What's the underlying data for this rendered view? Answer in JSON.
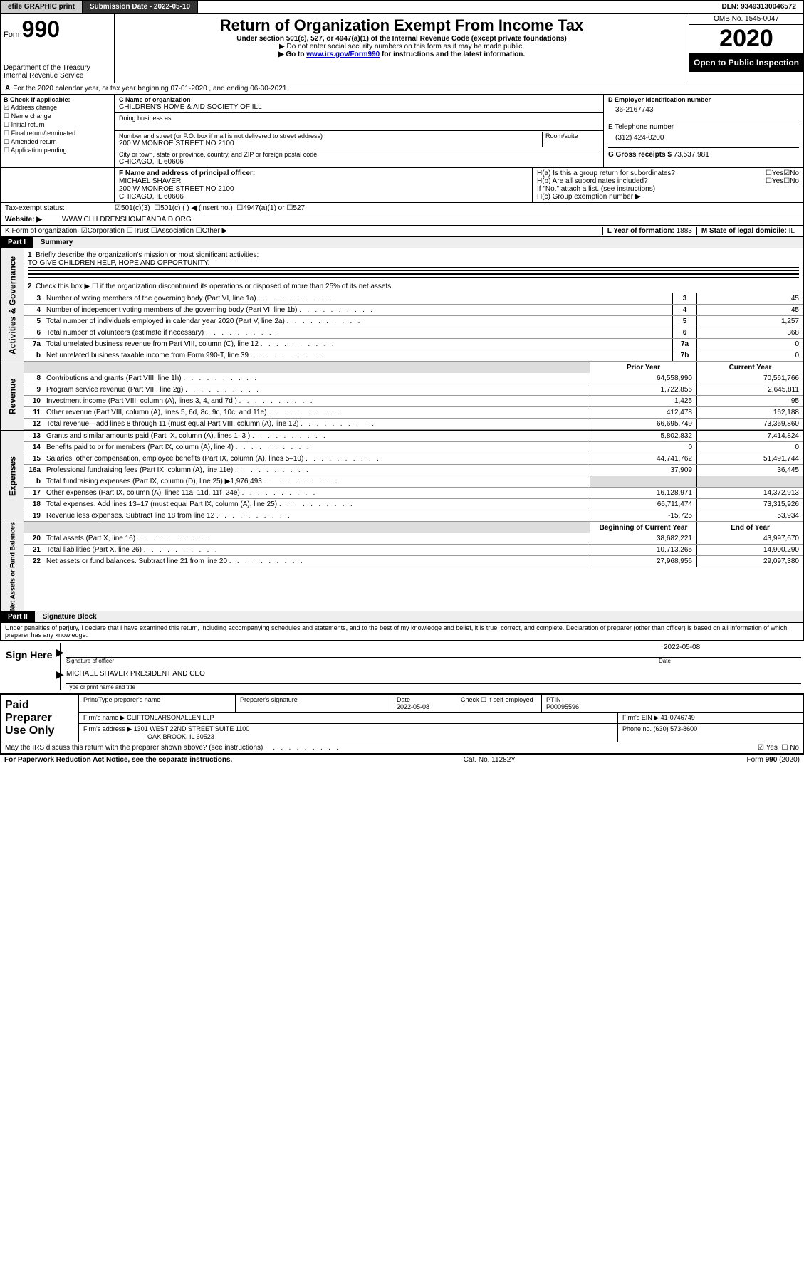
{
  "topbar": {
    "efile": "efile GRAPHIC print",
    "subdate_label": "Submission Date - ",
    "subdate": "2022-05-10",
    "dln_label": "DLN: ",
    "dln": "93493130046572"
  },
  "header": {
    "form": "Form",
    "f990": "990",
    "dept": "Department of the Treasury\nInternal Revenue Service",
    "title": "Return of Organization Exempt From Income Tax",
    "sub": "Under section 501(c), 527, or 4947(a)(1) of the Internal Revenue Code (except private foundations)",
    "note1": "▶ Do not enter social security numbers on this form as it may be made public.",
    "note2": "▶ Go to www.irs.gov/Form990 for instructions and the latest information.",
    "link": "www.irs.gov/Form990",
    "omb": "OMB No. 1545-0047",
    "year": "2020",
    "inspect": "Open to Public Inspection"
  },
  "a": {
    "text": "For the 2020 calendar year, or tax year beginning 07-01-2020   , and ending 06-30-2021",
    "label": "A"
  },
  "b": {
    "title": "B Check if applicable:",
    "opts": [
      "Address change",
      "Name change",
      "Initial return",
      "Final return/terminated",
      "Amended return",
      "Application pending"
    ],
    "checked": [
      true,
      false,
      false,
      false,
      false,
      false
    ]
  },
  "c": {
    "name_label": "C Name of organization",
    "name": "CHILDREN'S HOME & AID SOCIETY OF ILL",
    "dba": "Doing business as",
    "addr_label": "Number and street (or P.O. box if mail is not delivered to street address)",
    "addr": "200 W MONROE STREET NO 2100",
    "room": "Room/suite",
    "city_label": "City or town, state or province, country, and ZIP or foreign postal code",
    "city": "CHICAGO, IL  60606"
  },
  "d": {
    "label": "D Employer identification number",
    "value": "36-2167743"
  },
  "e": {
    "label": "E Telephone number",
    "value": "(312) 424-0200"
  },
  "g": {
    "label": "G Gross receipts $",
    "value": "73,537,981"
  },
  "f": {
    "label": "F  Name and address of principal officer:",
    "name": "MICHAEL SHAVER",
    "addr": "200 W MONROE STREET NO 2100",
    "city": "CHICAGO, IL  60606"
  },
  "h": {
    "a": "H(a)  Is this a group return for subordinates?",
    "b": "H(b)  Are all subordinates included?",
    "bnote": "If \"No,\" attach a list. (see instructions)",
    "c": "H(c)  Group exemption number ▶",
    "yes": "Yes",
    "no": "No"
  },
  "i": {
    "label": "Tax-exempt status:",
    "opts": [
      "501(c)(3)",
      "501(c) (   ) ◀ (insert no.)",
      "4947(a)(1) or",
      "527"
    ]
  },
  "j": {
    "label": "Website: ▶",
    "value": "WWW.CHILDRENSHOMEANDAID.ORG"
  },
  "k": {
    "label": "K Form of organization:",
    "opts": [
      "Corporation",
      "Trust",
      "Association",
      "Other ▶"
    ]
  },
  "l": {
    "label": "L Year of formation:",
    "value": "1883"
  },
  "m": {
    "label": "M State of legal domicile:",
    "value": "IL"
  },
  "parti": {
    "label": "Part I",
    "title": "Summary",
    "q1": "Briefly describe the organization's mission or most significant activities:",
    "q1a": "TO GIVE CHILDREN HELP, HOPE AND OPPORTUNITY.",
    "q2": "Check this box ▶ ☐  if the organization discontinued its operations or disposed of more than 25% of its net assets."
  },
  "gov_tab": "Activities & Governance",
  "rev_tab": "Revenue",
  "exp_tab": "Expenses",
  "net_tab": "Net Assets or Fund Balances",
  "lines_gov": [
    {
      "n": "3",
      "t": "Number of voting members of the governing body (Part VI, line 1a)",
      "cb": "3",
      "v": "45"
    },
    {
      "n": "4",
      "t": "Number of independent voting members of the governing body (Part VI, line 1b)",
      "cb": "4",
      "v": "45"
    },
    {
      "n": "5",
      "t": "Total number of individuals employed in calendar year 2020 (Part V, line 2a)",
      "cb": "5",
      "v": "1,257"
    },
    {
      "n": "6",
      "t": "Total number of volunteers (estimate if necessary)",
      "cb": "6",
      "v": "368"
    },
    {
      "n": "7a",
      "t": "Total unrelated business revenue from Part VIII, column (C), line 12",
      "cb": "7a",
      "v": "0"
    },
    {
      "n": "b",
      "t": "Net unrelated business taxable income from Form 990-T, line 39",
      "cb": "7b",
      "v": "0"
    }
  ],
  "col_prior": "Prior Year",
  "col_curr": "Current Year",
  "lines_rev": [
    {
      "n": "8",
      "t": "Contributions and grants (Part VIII, line 1h)",
      "p": "64,558,990",
      "c": "70,561,766"
    },
    {
      "n": "9",
      "t": "Program service revenue (Part VIII, line 2g)",
      "p": "1,722,856",
      "c": "2,645,811"
    },
    {
      "n": "10",
      "t": "Investment income (Part VIII, column (A), lines 3, 4, and 7d )",
      "p": "1,425",
      "c": "95"
    },
    {
      "n": "11",
      "t": "Other revenue (Part VIII, column (A), lines 5, 6d, 8c, 9c, 10c, and 11e)",
      "p": "412,478",
      "c": "162,188"
    },
    {
      "n": "12",
      "t": "Total revenue—add lines 8 through 11 (must equal Part VIII, column (A), line 12)",
      "p": "66,695,749",
      "c": "73,369,860"
    }
  ],
  "lines_exp": [
    {
      "n": "13",
      "t": "Grants and similar amounts paid (Part IX, column (A), lines 1–3 )",
      "p": "5,802,832",
      "c": "7,414,824"
    },
    {
      "n": "14",
      "t": "Benefits paid to or for members (Part IX, column (A), line 4)",
      "p": "0",
      "c": "0"
    },
    {
      "n": "15",
      "t": "Salaries, other compensation, employee benefits (Part IX, column (A), lines 5–10)",
      "p": "44,741,762",
      "c": "51,491,744"
    },
    {
      "n": "16a",
      "t": "Professional fundraising fees (Part IX, column (A), line 11e)",
      "p": "37,909",
      "c": "36,445"
    },
    {
      "n": "b",
      "t": "Total fundraising expenses (Part IX, column (D), line 25) ▶1,976,493",
      "p": "",
      "c": "",
      "shade": true
    },
    {
      "n": "17",
      "t": "Other expenses (Part IX, column (A), lines 11a–11d, 11f–24e)",
      "p": "16,128,971",
      "c": "14,372,913"
    },
    {
      "n": "18",
      "t": "Total expenses. Add lines 13–17 (must equal Part IX, column (A), line 25)",
      "p": "66,711,474",
      "c": "73,315,926"
    },
    {
      "n": "19",
      "t": "Revenue less expenses. Subtract line 18 from line 12",
      "p": "-15,725",
      "c": "53,934"
    }
  ],
  "col_begin": "Beginning of Current Year",
  "col_end": "End of Year",
  "lines_net": [
    {
      "n": "20",
      "t": "Total assets (Part X, line 16)",
      "p": "38,682,221",
      "c": "43,997,670"
    },
    {
      "n": "21",
      "t": "Total liabilities (Part X, line 26)",
      "p": "10,713,265",
      "c": "14,900,290"
    },
    {
      "n": "22",
      "t": "Net assets or fund balances. Subtract line 21 from line 20",
      "p": "27,968,956",
      "c": "29,097,380"
    }
  ],
  "partii": {
    "label": "Part II",
    "title": "Signature Block"
  },
  "perjury": "Under penalties of perjury, I declare that I have examined this return, including accompanying schedules and statements, and to the best of my knowledge and belief, it is true, correct, and complete. Declaration of preparer (other than officer) is based on all information of which preparer has any knowledge.",
  "sign": {
    "label": "Sign Here",
    "sig_officer": "Signature of officer",
    "date": "2022-05-08",
    "date_label": "Date",
    "typed": "MICHAEL SHAVER  PRESIDENT AND CEO",
    "typed_label": "Type or print name and title"
  },
  "paid": {
    "label": "Paid Preparer Use Only",
    "h_name": "Print/Type preparer's name",
    "h_sig": "Preparer's signature",
    "h_date": "Date",
    "date": "2022-05-08",
    "check": "Check ☐ if self-employed",
    "ptin_label": "PTIN",
    "ptin": "P00095596",
    "firm_name_l": "Firm's name     ▶",
    "firm_name": "CLIFTONLARSONALLEN LLP",
    "firm_ein_l": "Firm's EIN ▶",
    "firm_ein": "41-0746749",
    "firm_addr_l": "Firm's address ▶",
    "firm_addr": "1301 WEST 22ND STREET SUITE 1100",
    "firm_city": "OAK BROOK, IL  60523",
    "phone_l": "Phone no.",
    "phone": "(630) 573-8600"
  },
  "discuss": "May the IRS discuss this return with the preparer shown above? (see instructions)",
  "footer": {
    "left": "For Paperwork Reduction Act Notice, see the separate instructions.",
    "mid": "Cat. No. 11282Y",
    "right": "Form 990 (2020)"
  }
}
